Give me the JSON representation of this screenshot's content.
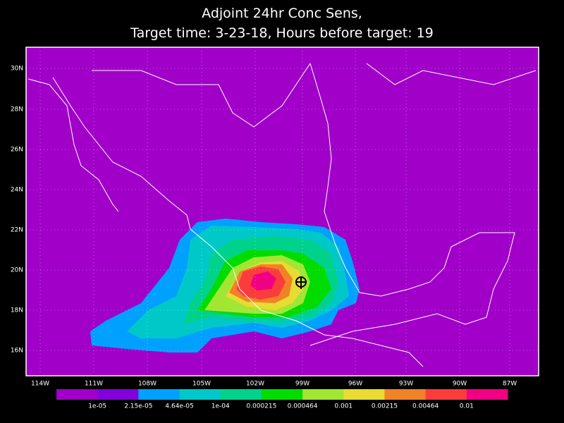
{
  "title": [
    "Adjoint 24hr Conc Sens,",
    "Target time: 3-23-18, Hours before target: 19"
  ],
  "map": {
    "lat_labels": [
      "30N",
      "28N",
      "26N",
      "24N",
      "22N",
      "20N",
      "18N",
      "16N"
    ],
    "lon_labels": [
      "114W",
      "111W",
      "108W",
      "105W",
      "102W",
      "99W",
      "96W",
      "93W",
      "90W",
      "87W"
    ]
  },
  "colorbar": {
    "colors": [
      "#a000c8",
      "#8200dc",
      "#00a0ff",
      "#00c8c8",
      "#00d28c",
      "#00dc00",
      "#a0e632",
      "#e6dc32",
      "#f08228",
      "#fa3c3c",
      "#f00082"
    ],
    "labels": [
      "1e-05",
      "2.15e-05",
      "4.64e-05",
      "1e-04",
      "0.000215",
      "0.000464",
      "0.001",
      "0.00215",
      "0.00464",
      "0.01"
    ]
  }
}
